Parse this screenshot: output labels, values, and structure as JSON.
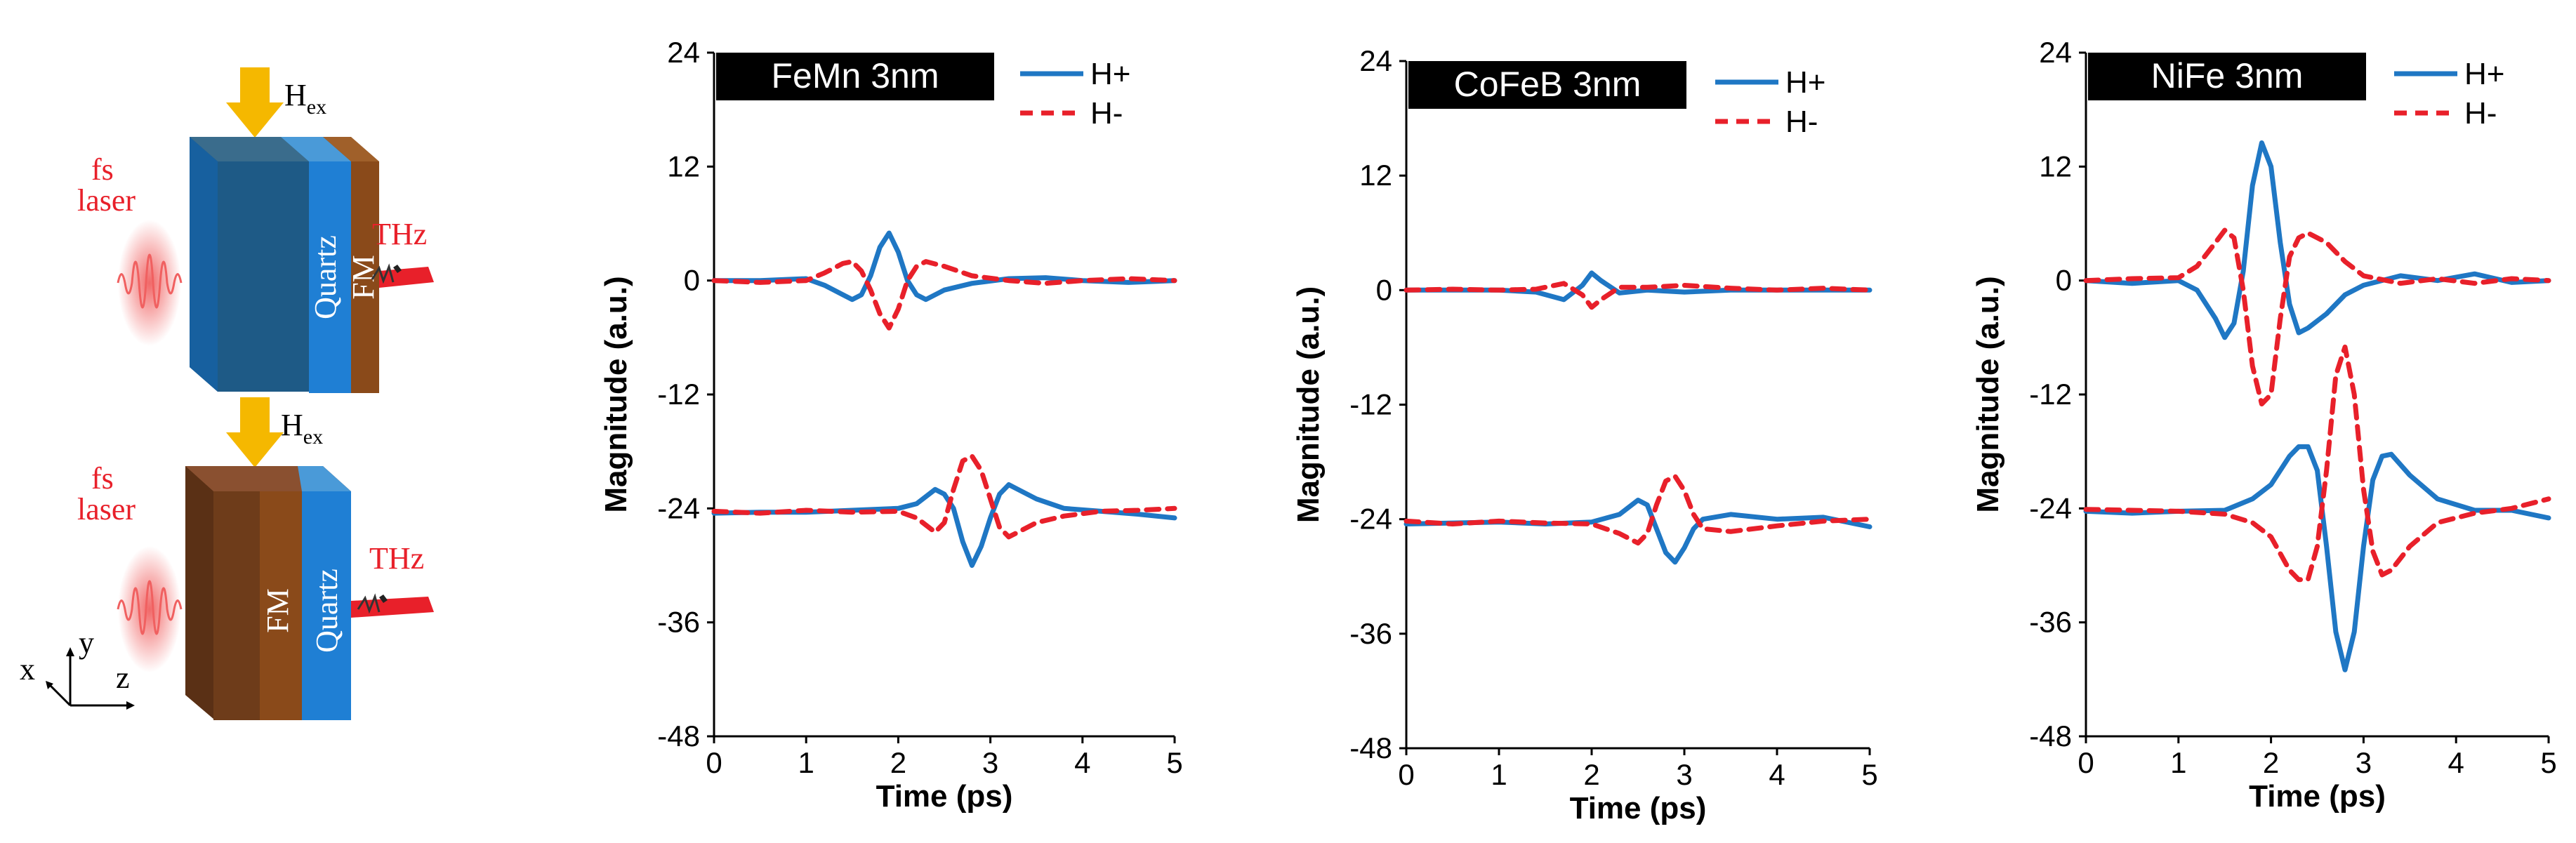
{
  "colors": {
    "h_plus": "#1f77c4",
    "h_minus": "#e8202a",
    "title_bg": "#000000",
    "quartz": "#1f7fd4",
    "quartz_dark": "#17609f",
    "fm": "#8a4a1a",
    "fm_dark": "#6a3a18",
    "arrow": "#f5b800",
    "laser": "#f06060"
  },
  "diagram": {
    "top": {
      "laser_line1": "fs",
      "laser_line2": "laser",
      "field_label": "H",
      "field_sub": "ex",
      "layer_a": "Quartz",
      "layer_b": "FM",
      "output": "THz"
    },
    "bottom": {
      "laser_line1": "fs",
      "laser_line2": "laser",
      "field_label": "H",
      "field_sub": "ex",
      "layer_a": "FM",
      "layer_b": "Quartz",
      "output": "THz"
    },
    "axes": {
      "x": "x",
      "y": "y",
      "z": "z"
    }
  },
  "chart_data": [
    {
      "type": "line",
      "title": "FeMn 3nm",
      "xlabel": "Time (ps)",
      "ylabel": "Magnitude (a.u.)",
      "xlim": [
        0,
        5
      ],
      "ylim": [
        -48,
        24
      ],
      "xticks": [
        0,
        1,
        2,
        3,
        4,
        5
      ],
      "yticks": [
        24,
        12,
        0,
        -12,
        -24,
        -36,
        -48
      ],
      "legend_position": "top-right",
      "series": [
        {
          "name": "H+",
          "style": "solid",
          "x": [
            0,
            0.5,
            1.0,
            1.2,
            1.4,
            1.5,
            1.6,
            1.7,
            1.8,
            1.9,
            2.0,
            2.1,
            2.2,
            2.3,
            2.5,
            2.8,
            3.2,
            3.6,
            4.0,
            4.5,
            5.0
          ],
          "y": [
            0,
            0,
            0.2,
            -0.5,
            -1.5,
            -2,
            -1.5,
            0.5,
            3.5,
            5,
            3,
            0,
            -1.5,
            -2,
            -1,
            -0.3,
            0.2,
            0.3,
            0,
            -0.2,
            0
          ]
        },
        {
          "name": "H-",
          "style": "dashed",
          "x": [
            0,
            0.5,
            1.0,
            1.2,
            1.4,
            1.5,
            1.6,
            1.7,
            1.8,
            1.9,
            2.0,
            2.1,
            2.2,
            2.3,
            2.5,
            2.8,
            3.2,
            3.6,
            4.0,
            4.5,
            5.0
          ],
          "y": [
            0,
            -0.2,
            0,
            0.8,
            1.8,
            2,
            1,
            -1,
            -3.5,
            -5,
            -3,
            0,
            1.5,
            2,
            1.5,
            0.5,
            0,
            -0.3,
            0,
            0.2,
            0
          ]
        },
        {
          "name": "H+",
          "style": "solid",
          "x": [
            0,
            0.5,
            1.0,
            1.5,
            2.0,
            2.2,
            2.4,
            2.5,
            2.6,
            2.7,
            2.8,
            2.9,
            3.0,
            3.1,
            3.2,
            3.3,
            3.5,
            3.8,
            4.2,
            4.6,
            5.0
          ],
          "y": [
            -24.5,
            -24.4,
            -24.4,
            -24.2,
            -24,
            -23.5,
            -22,
            -22.5,
            -24,
            -27.5,
            -30,
            -28,
            -25,
            -22.5,
            -21.5,
            -22,
            -23,
            -24,
            -24.3,
            -24.6,
            -25
          ]
        },
        {
          "name": "H-",
          "style": "dashed",
          "x": [
            0,
            0.5,
            1.0,
            1.5,
            2.0,
            2.2,
            2.4,
            2.5,
            2.6,
            2.7,
            2.8,
            2.9,
            3.0,
            3.1,
            3.2,
            3.3,
            3.5,
            3.8,
            4.2,
            4.6,
            5.0
          ],
          "y": [
            -24.3,
            -24.5,
            -24.2,
            -24.4,
            -24.3,
            -25,
            -26.5,
            -25.5,
            -22,
            -19,
            -18.5,
            -20,
            -23,
            -26,
            -27,
            -26.5,
            -25.5,
            -24.8,
            -24.3,
            -24.2,
            -24
          ]
        }
      ]
    },
    {
      "type": "line",
      "title": "CoFeB 3nm",
      "xlabel": "Time (ps)",
      "ylabel": "Magnitude (a.u.)",
      "xlim": [
        0,
        5
      ],
      "ylim": [
        -48,
        24
      ],
      "xticks": [
        0,
        1,
        2,
        3,
        4,
        5
      ],
      "yticks": [
        24,
        12,
        0,
        -12,
        -24,
        -36,
        -48
      ],
      "legend_position": "top-right",
      "series": [
        {
          "name": "H+",
          "style": "solid",
          "x": [
            0,
            0.5,
            1.0,
            1.4,
            1.7,
            1.9,
            2.0,
            2.1,
            2.3,
            2.6,
            3.0,
            3.5,
            4.0,
            4.5,
            5.0
          ],
          "y": [
            0,
            0,
            0,
            -0.2,
            -1,
            0.5,
            1.8,
            1,
            -0.3,
            0,
            -0.2,
            0,
            0,
            0,
            0
          ]
        },
        {
          "name": "H-",
          "style": "dashed",
          "x": [
            0,
            0.5,
            1.0,
            1.4,
            1.7,
            1.9,
            2.0,
            2.1,
            2.3,
            2.6,
            3.0,
            3.5,
            4.0,
            4.5,
            5.0
          ],
          "y": [
            0,
            0.1,
            0,
            0.1,
            0.7,
            -0.5,
            -1.8,
            -1,
            0.3,
            0.3,
            0.5,
            0.2,
            0,
            0.2,
            0
          ]
        },
        {
          "name": "H+",
          "style": "solid",
          "x": [
            0,
            0.5,
            1.0,
            1.5,
            2.0,
            2.3,
            2.5,
            2.6,
            2.7,
            2.8,
            2.9,
            3.0,
            3.1,
            3.2,
            3.5,
            4.0,
            4.5,
            5.0
          ],
          "y": [
            -24.5,
            -24.4,
            -24.3,
            -24.5,
            -24.3,
            -23.5,
            -22,
            -22.5,
            -25,
            -27.5,
            -28.5,
            -27,
            -25,
            -24,
            -23.5,
            -24,
            -23.8,
            -24.8
          ]
        },
        {
          "name": "H-",
          "style": "dashed",
          "x": [
            0,
            0.5,
            1.0,
            1.5,
            2.0,
            2.3,
            2.5,
            2.6,
            2.7,
            2.8,
            2.9,
            3.0,
            3.1,
            3.2,
            3.5,
            4.0,
            4.5,
            5.0
          ],
          "y": [
            -24.2,
            -24.5,
            -24.2,
            -24.4,
            -24.5,
            -25.5,
            -26.5,
            -25.5,
            -22.5,
            -20,
            -19.5,
            -21,
            -23.5,
            -25,
            -25.3,
            -24.7,
            -24.2,
            -24
          ]
        }
      ]
    },
    {
      "type": "line",
      "title": "NiFe 3nm",
      "xlabel": "Time (ps)",
      "ylabel": "Magnitude (a.u.)",
      "xlim": [
        0,
        5
      ],
      "ylim": [
        -48,
        24
      ],
      "xticks": [
        0,
        1,
        2,
        3,
        4,
        5
      ],
      "yticks": [
        24,
        12,
        0,
        -12,
        -24,
        -36,
        -48
      ],
      "legend_position": "top-right",
      "series": [
        {
          "name": "H+",
          "style": "solid",
          "x": [
            0,
            0.5,
            1.0,
            1.2,
            1.4,
            1.5,
            1.6,
            1.7,
            1.8,
            1.9,
            2.0,
            2.1,
            2.2,
            2.3,
            2.4,
            2.6,
            2.8,
            3.0,
            3.4,
            3.8,
            4.2,
            4.6,
            5.0
          ],
          "y": [
            0,
            -0.3,
            0,
            -1,
            -4,
            -6,
            -4.5,
            1,
            10,
            14.5,
            12,
            4,
            -2.5,
            -5.5,
            -5,
            -3.5,
            -1.5,
            -0.5,
            0.5,
            0,
            0.7,
            -0.2,
            0
          ]
        },
        {
          "name": "H-",
          "style": "dashed",
          "x": [
            0,
            0.5,
            1.0,
            1.2,
            1.4,
            1.5,
            1.6,
            1.7,
            1.8,
            1.9,
            2.0,
            2.1,
            2.2,
            2.3,
            2.4,
            2.6,
            2.8,
            3.0,
            3.4,
            3.8,
            4.2,
            4.6,
            5.0
          ],
          "y": [
            0,
            0.2,
            0.3,
            1.5,
            4,
            5.3,
            4.5,
            -1,
            -9,
            -13,
            -12,
            -4,
            2.5,
            4.5,
            5,
            4,
            2,
            0.5,
            -0.3,
            0.2,
            -0.3,
            0.2,
            0
          ]
        },
        {
          "name": "H+",
          "style": "solid",
          "x": [
            0,
            0.5,
            1.0,
            1.5,
            1.8,
            2.0,
            2.2,
            2.3,
            2.4,
            2.5,
            2.6,
            2.7,
            2.8,
            2.9,
            3.0,
            3.1,
            3.2,
            3.3,
            3.5,
            3.8,
            4.2,
            4.6,
            5.0
          ],
          "y": [
            -24.3,
            -24.5,
            -24.3,
            -24.2,
            -23,
            -21.5,
            -18.5,
            -17.5,
            -17.5,
            -20,
            -28,
            -37,
            -41,
            -37,
            -28,
            -21,
            -18.5,
            -18.3,
            -20.5,
            -23,
            -24.2,
            -24.2,
            -25
          ]
        },
        {
          "name": "H-",
          "style": "dashed",
          "x": [
            0,
            0.5,
            1.0,
            1.5,
            1.8,
            2.0,
            2.2,
            2.3,
            2.4,
            2.5,
            2.6,
            2.7,
            2.8,
            2.9,
            3.0,
            3.1,
            3.2,
            3.3,
            3.5,
            3.8,
            4.2,
            4.6,
            5.0
          ],
          "y": [
            -24.1,
            -24.2,
            -24.3,
            -24.6,
            -25.5,
            -27,
            -30.5,
            -31.5,
            -31.5,
            -28,
            -20,
            -10,
            -7,
            -12,
            -22,
            -28.5,
            -31,
            -30.5,
            -28,
            -25.5,
            -24.5,
            -24,
            -23
          ]
        }
      ]
    }
  ]
}
